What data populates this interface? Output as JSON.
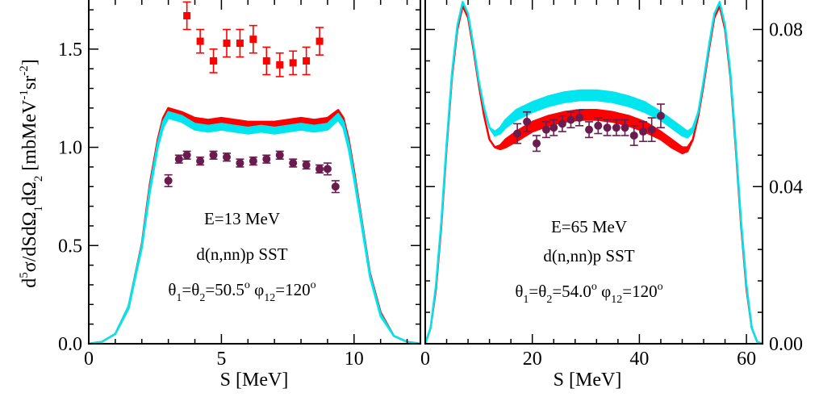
{
  "chart_data": [
    {
      "type": "scatter",
      "panel": "left",
      "xlabel": "S [MeV]",
      "ylabel": "d5σ/dSdΩ1dΩ2 [mbMeV-1sr-2]",
      "ylabel_parts": [
        "d",
        "5",
        "σ/dSdΩ",
        "1",
        "dΩ",
        "2",
        " [mbMeV",
        "-1",
        "sr",
        "-2",
        "]"
      ],
      "xlim": [
        0,
        12.5
      ],
      "ylim": [
        0,
        1.75
      ],
      "xticks": [
        0,
        5,
        10
      ],
      "yticks": [
        0.0,
        0.5,
        1.0,
        1.5
      ],
      "ytick_labels": [
        "0.0",
        "0.5",
        "1.0",
        "1.5"
      ],
      "annotations": {
        "energy": "E=13 MeV",
        "reaction": "d(n,nn)p   SST",
        "angles": "θ1=θ2=50.5o φ12=120o",
        "angle_parts": [
          "θ",
          "1",
          "=θ",
          "2",
          "=50.5",
          "o",
          " φ",
          "12",
          "=120",
          "o"
        ]
      },
      "series": [
        {
          "kind": "data-squares",
          "color": "#ff0000",
          "x": [
            3.7,
            4.2,
            4.7,
            5.2,
            5.7,
            6.2,
            6.7,
            7.2,
            7.7,
            8.2,
            8.7
          ],
          "y": [
            1.67,
            1.54,
            1.44,
            1.53,
            1.53,
            1.55,
            1.44,
            1.42,
            1.43,
            1.44,
            1.54
          ],
          "err": [
            0.07,
            0.06,
            0.06,
            0.07,
            0.07,
            0.07,
            0.07,
            0.06,
            0.06,
            0.07,
            0.07
          ]
        },
        {
          "kind": "data-circles",
          "color": "#6b1c4e",
          "x": [
            3.0,
            3.4,
            3.7,
            4.2,
            4.7,
            5.2,
            5.7,
            6.2,
            6.7,
            7.2,
            7.7,
            8.2,
            8.7,
            9.0,
            9.3
          ],
          "y": [
            0.83,
            0.94,
            0.96,
            0.93,
            0.96,
            0.95,
            0.92,
            0.93,
            0.94,
            0.96,
            0.92,
            0.91,
            0.89,
            0.89,
            0.8
          ],
          "err": [
            0.03,
            0.02,
            0.02,
            0.02,
            0.02,
            0.02,
            0.02,
            0.02,
            0.02,
            0.02,
            0.02,
            0.02,
            0.02,
            0.03,
            0.03
          ]
        },
        {
          "kind": "band",
          "color": "#ff0000",
          "x": [
            0,
            0.5,
            1.0,
            1.5,
            2.0,
            2.3,
            2.6,
            2.8,
            3.0,
            3.5,
            4.0,
            4.5,
            5.0,
            5.5,
            6.0,
            6.5,
            7.0,
            7.5,
            8.0,
            8.5,
            9.0,
            9.4,
            9.6,
            9.8,
            10.0,
            10.3,
            10.6,
            11.0,
            11.5,
            12.0,
            12.5
          ],
          "lower": [
            0,
            0.01,
            0.05,
            0.18,
            0.5,
            0.79,
            1.02,
            1.12,
            1.17,
            1.15,
            1.12,
            1.11,
            1.12,
            1.11,
            1.1,
            1.1,
            1.1,
            1.11,
            1.12,
            1.11,
            1.12,
            1.16,
            1.12,
            1.01,
            0.86,
            0.6,
            0.35,
            0.15,
            0.04,
            0.01,
            0
          ],
          "upper": [
            0,
            0.01,
            0.05,
            0.19,
            0.51,
            0.81,
            1.04,
            1.15,
            1.2,
            1.18,
            1.15,
            1.14,
            1.15,
            1.14,
            1.13,
            1.13,
            1.13,
            1.14,
            1.15,
            1.14,
            1.15,
            1.19,
            1.15,
            1.04,
            0.88,
            0.62,
            0.36,
            0.16,
            0.04,
            0.01,
            0
          ]
        },
        {
          "kind": "band",
          "color": "#00e5ee",
          "x": [
            0,
            0.5,
            1.0,
            1.5,
            2.0,
            2.3,
            2.6,
            2.8,
            3.0,
            3.5,
            4.0,
            4.5,
            5.0,
            5.5,
            6.0,
            6.5,
            7.0,
            7.5,
            8.0,
            8.5,
            9.0,
            9.4,
            9.6,
            9.8,
            10.0,
            10.3,
            10.6,
            11.0,
            11.5,
            12.0,
            12.5
          ],
          "lower": [
            0,
            0.01,
            0.05,
            0.18,
            0.49,
            0.77,
            1.0,
            1.1,
            1.15,
            1.13,
            1.09,
            1.08,
            1.09,
            1.08,
            1.07,
            1.08,
            1.07,
            1.08,
            1.09,
            1.08,
            1.09,
            1.14,
            1.1,
            0.99,
            0.84,
            0.59,
            0.34,
            0.14,
            0.04,
            0.01,
            0
          ],
          "upper": [
            0,
            0.01,
            0.05,
            0.19,
            0.5,
            0.79,
            1.02,
            1.13,
            1.18,
            1.16,
            1.12,
            1.11,
            1.12,
            1.11,
            1.1,
            1.11,
            1.1,
            1.11,
            1.12,
            1.11,
            1.12,
            1.17,
            1.13,
            1.02,
            0.86,
            0.61,
            0.35,
            0.15,
            0.04,
            0.01,
            0
          ]
        }
      ]
    },
    {
      "type": "scatter",
      "panel": "right",
      "xlabel": "S [MeV]",
      "xlim": [
        0,
        63
      ],
      "ylim": [
        0,
        0.0875
      ],
      "xticks": [
        0,
        20,
        40,
        60
      ],
      "yticks": [
        0.0,
        0.04,
        0.08
      ],
      "ytick_labels": [
        "0.00",
        "0.04",
        "0.08"
      ],
      "annotations": {
        "energy": "E=65 MeV",
        "reaction": "d(n,nn)p   SST",
        "angles": "θ1=θ2=54.0o φ12=120o",
        "angle_parts": [
          "θ",
          "1",
          "=θ",
          "2",
          "=54.0",
          "o",
          " φ",
          "12",
          "=120",
          "o"
        ]
      },
      "series": [
        {
          "kind": "data-circles",
          "color": "#6b1c4e",
          "x": [
            17.2,
            19.0,
            20.8,
            22.6,
            24.0,
            25.6,
            27.2,
            28.8,
            30.6,
            32.3,
            34.0,
            35.7,
            37.3,
            39.0,
            40.7,
            42.3,
            44.0
          ],
          "y": [
            0.0535,
            0.0565,
            0.051,
            0.0545,
            0.055,
            0.056,
            0.057,
            0.0575,
            0.0545,
            0.0555,
            0.055,
            0.055,
            0.055,
            0.053,
            0.054,
            0.0545,
            0.058
          ],
          "err": [
            0.0025,
            0.0025,
            0.002,
            0.002,
            0.002,
            0.002,
            0.002,
            0.002,
            0.002,
            0.002,
            0.002,
            0.002,
            0.002,
            0.0025,
            0.0025,
            0.003,
            0.003
          ]
        },
        {
          "kind": "band",
          "color": "#ff0000",
          "x": [
            0,
            1,
            2,
            3,
            4,
            5,
            6,
            7,
            8,
            9,
            10,
            11,
            12,
            13,
            14,
            15,
            17,
            20,
            23,
            26,
            29,
            32,
            35,
            38,
            41,
            44,
            46,
            48,
            49,
            50,
            51,
            52,
            53,
            54,
            55,
            56,
            57,
            58,
            59,
            60,
            61,
            62,
            63
          ],
          "lower": [
            0,
            0.004,
            0.014,
            0.03,
            0.05,
            0.068,
            0.08,
            0.086,
            0.083,
            0.075,
            0.066,
            0.058,
            0.052,
            0.05,
            0.0495,
            0.05,
            0.0515,
            0.054,
            0.0555,
            0.0565,
            0.057,
            0.057,
            0.0565,
            0.0555,
            0.054,
            0.052,
            0.05,
            0.0485,
            0.049,
            0.052,
            0.058,
            0.066,
            0.075,
            0.083,
            0.086,
            0.08,
            0.068,
            0.05,
            0.03,
            0.014,
            0.004,
            0.0005,
            0
          ],
          "upper": [
            0,
            0.004,
            0.014,
            0.03,
            0.05,
            0.068,
            0.08,
            0.086,
            0.083,
            0.075,
            0.066,
            0.058,
            0.052,
            0.05,
            0.0505,
            0.052,
            0.054,
            0.0565,
            0.058,
            0.059,
            0.0595,
            0.0595,
            0.059,
            0.058,
            0.0565,
            0.054,
            0.052,
            0.05,
            0.05,
            0.052,
            0.058,
            0.066,
            0.075,
            0.083,
            0.086,
            0.08,
            0.068,
            0.05,
            0.03,
            0.014,
            0.004,
            0.0005,
            0
          ]
        },
        {
          "kind": "band",
          "color": "#00e5ee",
          "x": [
            0,
            1,
            2,
            3,
            4,
            5,
            6,
            7,
            8,
            9,
            10,
            11,
            12,
            13,
            14,
            15,
            17,
            20,
            23,
            26,
            29,
            32,
            35,
            38,
            41,
            44,
            46,
            48,
            49,
            50,
            51,
            52,
            53,
            54,
            55,
            56,
            57,
            58,
            59,
            60,
            61,
            62,
            63
          ],
          "lower": [
            0,
            0.004,
            0.015,
            0.031,
            0.051,
            0.069,
            0.081,
            0.087,
            0.084,
            0.076,
            0.067,
            0.06,
            0.055,
            0.053,
            0.0535,
            0.055,
            0.057,
            0.059,
            0.0605,
            0.0615,
            0.062,
            0.062,
            0.0615,
            0.0605,
            0.059,
            0.057,
            0.055,
            0.053,
            0.0525,
            0.054,
            0.059,
            0.067,
            0.076,
            0.084,
            0.087,
            0.081,
            0.069,
            0.051,
            0.031,
            0.015,
            0.004,
            0.0005,
            0
          ],
          "upper": [
            0,
            0.004,
            0.015,
            0.031,
            0.051,
            0.069,
            0.081,
            0.087,
            0.084,
            0.076,
            0.067,
            0.06,
            0.055,
            0.054,
            0.055,
            0.057,
            0.0595,
            0.0615,
            0.063,
            0.064,
            0.0645,
            0.0645,
            0.064,
            0.063,
            0.0615,
            0.059,
            0.057,
            0.055,
            0.054,
            0.055,
            0.059,
            0.067,
            0.076,
            0.084,
            0.087,
            0.081,
            0.069,
            0.051,
            0.031,
            0.015,
            0.004,
            0.0005,
            0
          ]
        }
      ]
    }
  ]
}
